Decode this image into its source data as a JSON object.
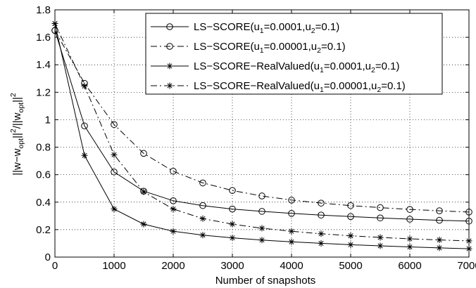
{
  "chart_data": {
    "type": "line",
    "xlabel": "Number of snapshots",
    "ylabel": {
      "main": "||w−w",
      "sub1": "opt",
      "mid": "||",
      "sup1": "2",
      "mid2": "/||w",
      "sub2": "opt",
      "end": "||",
      "sup2": "2"
    },
    "xlim": [
      0,
      7000
    ],
    "ylim": [
      0,
      1.8
    ],
    "xticks": [
      0,
      1000,
      2000,
      3000,
      4000,
      5000,
      6000,
      7000
    ],
    "xtick_labels": [
      "0",
      "1000",
      "2000",
      "3000",
      "4000",
      "5000",
      "6000",
      "7000"
    ],
    "yticks": [
      0,
      0.2,
      0.4,
      0.6,
      0.8,
      1.0,
      1.2,
      1.4,
      1.6,
      1.8
    ],
    "ytick_labels": [
      "0",
      "0.2",
      "0.4",
      "0.6",
      "0.8",
      "1",
      "1.2",
      "1.4",
      "1.6",
      "1.8"
    ],
    "grid": true,
    "legend_position": "top-right",
    "x": [
      0,
      500,
      1000,
      1500,
      2000,
      2500,
      3000,
      3500,
      4000,
      4500,
      5000,
      5500,
      6000,
      6500,
      7000
    ],
    "series": [
      {
        "name": "LS−SCORE(u1=0.0001,u2=0.1)",
        "legend": {
          "pre": "LS−SCORE(u",
          "s1": "1",
          "mid": "=0.0001,u",
          "s2": "2",
          "post": "=0.1)"
        },
        "line_style": "solid",
        "marker": "circle",
        "color": "#000000",
        "values": [
          1.65,
          0.955,
          0.62,
          0.48,
          0.41,
          0.375,
          0.35,
          0.333,
          0.318,
          0.306,
          0.295,
          0.285,
          0.276,
          0.268,
          0.262
        ]
      },
      {
        "name": "LS−SCORE(u1=0.00001,u2=0.1)",
        "legend": {
          "pre": "LS−SCORE(u",
          "s1": "1",
          "mid": "=0.00001,u",
          "s2": "2",
          "post": "=0.1)"
        },
        "line_style": "dashdot",
        "marker": "circle",
        "color": "#000000",
        "values": [
          1.65,
          1.265,
          0.965,
          0.755,
          0.625,
          0.54,
          0.485,
          0.445,
          0.415,
          0.393,
          0.375,
          0.36,
          0.347,
          0.337,
          0.328
        ]
      },
      {
        "name": "LS−SCORE−RealValued(u1=0.0001,u2=0.1)",
        "legend": {
          "pre": "LS−SCORE−RealValued(u",
          "s1": "1",
          "mid": "=0.0001,u",
          "s2": "2",
          "post": "=0.1)"
        },
        "line_style": "solid",
        "marker": "star",
        "color": "#000000",
        "values": [
          1.7,
          0.74,
          0.35,
          0.24,
          0.188,
          0.16,
          0.14,
          0.124,
          0.111,
          0.1,
          0.09,
          0.082,
          0.074,
          0.067,
          0.061
        ]
      },
      {
        "name": "LS−SCORE−RealValued(u1=0.00001,u2=0.1)",
        "legend": {
          "pre": "LS−SCORE−RealValued(u",
          "s1": "1",
          "mid": "=0.00001,u",
          "s2": "2",
          "post": "=0.1)"
        },
        "line_style": "dashdot",
        "marker": "star",
        "color": "#000000",
        "values": [
          1.7,
          1.245,
          0.745,
          0.475,
          0.35,
          0.28,
          0.24,
          0.21,
          0.188,
          0.17,
          0.155,
          0.143,
          0.133,
          0.125,
          0.118
        ]
      }
    ]
  }
}
